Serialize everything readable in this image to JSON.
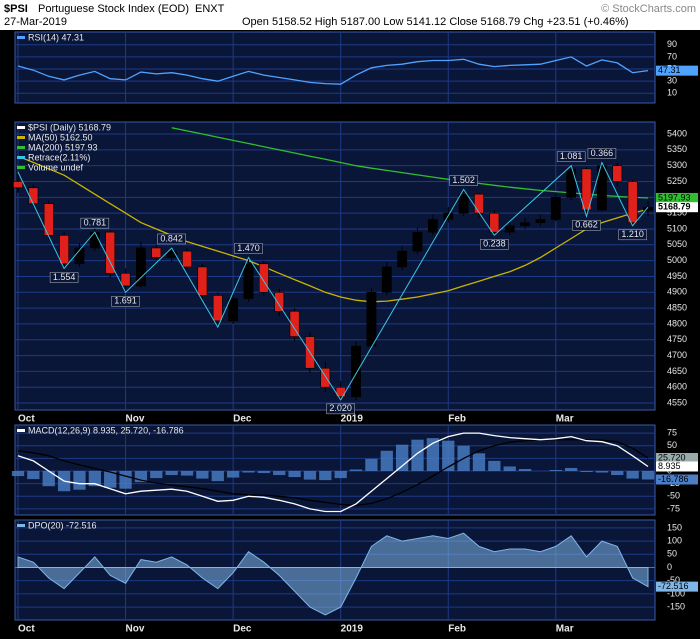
{
  "header": {
    "symbol": "$PSI",
    "name": "Portuguese Stock Index (EOD)",
    "exchange": "ENXT",
    "date": "27-Mar-2019",
    "quote": "Open 5158.52  High 5187.00  Low 5141.12  Close 5168.79  Chg +23.51 (+0.46%)",
    "copyright": "© StockCharts.com"
  },
  "chart_data": [
    {
      "type": "line",
      "legend": [
        {
          "text": "RSI(14) 47.31",
          "color": "#4fa3ff"
        }
      ],
      "ylim": [
        -6,
        111
      ],
      "yticks": [
        10,
        30,
        50,
        70,
        90
      ],
      "grid": true,
      "series": [
        {
          "color": "#4fa3ff",
          "tag": true,
          "values": [
            55,
            48,
            38,
            32,
            40,
            46,
            34,
            32,
            45,
            42,
            44,
            40,
            34,
            30,
            38,
            46,
            40,
            36,
            32,
            28,
            26,
            25,
            40,
            52,
            56,
            58,
            62,
            64,
            64,
            66,
            58,
            54,
            56,
            57,
            58,
            64,
            70,
            55,
            65,
            60,
            44,
            47.31
          ]
        }
      ]
    },
    {
      "type": "candlestick",
      "categories": [
        "Oct",
        null,
        null,
        null,
        null,
        null,
        null,
        "Nov",
        null,
        null,
        null,
        null,
        null,
        null,
        "Dec",
        null,
        null,
        null,
        null,
        null,
        null,
        "2019",
        null,
        null,
        null,
        null,
        null,
        null,
        "Feb",
        null,
        null,
        null,
        null,
        null,
        null,
        "Mar",
        null,
        null,
        null,
        null,
        null,
        null
      ],
      "legend": [
        {
          "text": "$PSI (Daily) 5168.79",
          "color": "#ffffff"
        },
        {
          "text": "MA(50) 5162.50",
          "color": "#c8b400"
        },
        {
          "text": "MA(200) 5197.93",
          "color": "#2fbf2f"
        },
        {
          "text": "Retrace(2.11%)",
          "color": "#39c6e6"
        },
        {
          "text": "Volume undef",
          "color": "#2fbf2f"
        }
      ],
      "up_color": "#000000",
      "down_color": "#e0211b",
      "ylim": [
        4528,
        5438
      ],
      "yticks": [
        4550,
        4600,
        4650,
        4700,
        4750,
        4800,
        4850,
        4900,
        4950,
        5000,
        5050,
        5100,
        5150,
        5200,
        5250,
        5300,
        5350,
        5400
      ],
      "grid": true,
      "open": [
        5250,
        5230,
        5180,
        5080,
        4990,
        5040,
        5090,
        4960,
        4920,
        5040,
        5010,
        5030,
        4980,
        4890,
        4810,
        4880,
        4990,
        4900,
        4840,
        4760,
        4660,
        4600,
        4570,
        4730,
        4900,
        4980,
        5030,
        5090,
        5130,
        5150,
        5210,
        5150,
        5090,
        5110,
        5120,
        5130,
        5200,
        5290,
        5160,
        5300,
        5250,
        5158.52
      ],
      "high": [
        5275,
        5240,
        5190,
        5090,
        5055,
        5105,
        5095,
        4975,
        5060,
        5050,
        5045,
        5040,
        4990,
        4900,
        4895,
        5010,
        5000,
        4910,
        4850,
        4775,
        4680,
        4620,
        4745,
        4915,
        4995,
        5045,
        5105,
        5145,
        5170,
        5225,
        5215,
        5160,
        5125,
        5135,
        5145,
        5215,
        5300,
        5295,
        5315,
        5310,
        5255,
        5187
      ],
      "low": [
        5215,
        5170,
        5065,
        4970,
        4980,
        5030,
        4945,
        4900,
        4915,
        5000,
        4995,
        4970,
        4880,
        4790,
        4800,
        4870,
        4890,
        4825,
        4745,
        4645,
        4585,
        4555,
        4560,
        4720,
        4890,
        4970,
        5020,
        5080,
        5120,
        5140,
        5135,
        5080,
        5080,
        5100,
        5110,
        5125,
        5190,
        5140,
        5155,
        5235,
        5105,
        5141.12
      ],
      "close": [
        5230,
        5180,
        5080,
        4990,
        5040,
        5090,
        4960,
        4920,
        5040,
        5010,
        5030,
        4980,
        4890,
        4810,
        4880,
        4990,
        4900,
        4840,
        4760,
        4660,
        4600,
        4570,
        4730,
        4900,
        4980,
        5030,
        5090,
        5130,
        5150,
        5210,
        5150,
        5090,
        5110,
        5120,
        5130,
        5200,
        5290,
        5160,
        5300,
        5250,
        5120,
        5168.79
      ],
      "series": [
        {
          "color": "#c8b400",
          "values": [
            5330,
            5310,
            5290,
            5270,
            5240,
            5210,
            5180,
            5150,
            5120,
            5100,
            5080,
            5060,
            5045,
            5030,
            5015,
            5000,
            4980,
            4960,
            4940,
            4920,
            4900,
            4885,
            4875,
            4870,
            4872,
            4878,
            4885,
            4895,
            4905,
            4920,
            4935,
            4950,
            4965,
            4985,
            5010,
            5040,
            5070,
            5100,
            5120,
            5135,
            5150,
            5162.5
          ]
        },
        {
          "color": "#2fbf2f",
          "tag": true,
          "values": [
            null,
            null,
            null,
            null,
            null,
            null,
            null,
            null,
            null,
            null,
            5420,
            5410,
            5400,
            5390,
            5380,
            5370,
            5360,
            5350,
            5340,
            5330,
            5320,
            5310,
            5300,
            5292,
            5285,
            5278,
            5271,
            5264,
            5257,
            5250,
            5244,
            5238,
            5232,
            5227,
            5222,
            5218,
            5214,
            5210,
            5206,
            5203,
            5200,
            5197.93
          ]
        }
      ],
      "zigzag": {
        "color": "#39c6e6",
        "x": [
          0,
          3,
          5,
          7,
          10,
          13,
          15,
          21,
          29,
          31,
          36,
          37,
          38,
          40,
          41
        ],
        "values": [
          5280,
          4975,
          5090,
          4900,
          5040,
          4790,
          5010,
          4560,
          5225,
          5080,
          5300,
          5140,
          5310,
          5110,
          5168.79
        ],
        "labels": [
          null,
          "1.554",
          "0.781",
          "1.691",
          "0.842",
          null,
          "1.470",
          "2.020",
          "1.502",
          "0.238",
          "1.081",
          "0.662",
          "0.366",
          "1.210",
          null
        ]
      }
    },
    {
      "type": "line",
      "legend": [
        {
          "text": "MACD(12,26,9) 8.935, 25.720, -16.786",
          "color": "#ffffff"
        }
      ],
      "ylim": [
        -87,
        91
      ],
      "yticks": [
        -75,
        -50,
        -25,
        0,
        25,
        50,
        75
      ],
      "grid": true,
      "series": [
        {
          "type": "bar",
          "color": "#4a7fc8",
          "tag": true,
          "values": [
            -10,
            -16,
            -30,
            -40,
            -37,
            -30,
            -33,
            -35,
            -22,
            -14,
            -8,
            -9,
            -15,
            -20,
            -13,
            -3,
            -4,
            -8,
            -12,
            -17,
            -18,
            -14,
            3,
            24,
            40,
            52,
            62,
            65,
            60,
            50,
            35,
            20,
            9,
            4,
            0,
            2,
            6,
            -2,
            -3,
            -8,
            -15,
            -16.786
          ]
        },
        {
          "color": "#000000",
          "tag": true,
          "values": [
            40,
            36,
            30,
            20,
            12,
            5,
            -2,
            -10,
            -18,
            -24,
            -28,
            -31,
            -35,
            -40,
            -45,
            -47,
            -48,
            -50,
            -53,
            -58,
            -62,
            -66,
            -68,
            -64,
            -55,
            -42,
            -27,
            -10,
            8,
            25,
            40,
            50,
            57,
            60,
            62,
            62,
            62,
            62,
            61,
            58,
            45,
            25.72
          ],
          "value_labels": [
            null,
            null,
            null,
            null,
            null,
            null,
            null,
            null,
            null,
            null,
            null,
            null,
            null,
            null,
            null,
            null,
            null,
            null,
            null,
            null,
            null,
            null,
            null,
            null,
            null,
            null,
            null,
            null,
            null,
            null,
            null,
            null,
            null,
            null,
            null,
            null,
            null,
            null,
            null,
            null,
            null,
            "25.720"
          ]
        },
        {
          "color": "#ffffff",
          "tag": true,
          "values": [
            30,
            20,
            0,
            -20,
            -25,
            -25,
            -35,
            -45,
            -40,
            -38,
            -36,
            -40,
            -50,
            -60,
            -58,
            -50,
            -52,
            -58,
            -65,
            -75,
            -80,
            -80,
            -65,
            -40,
            -15,
            10,
            35,
            55,
            68,
            75,
            75,
            70,
            66,
            64,
            62,
            64,
            68,
            60,
            58,
            50,
            30,
            8.935
          ]
        }
      ]
    },
    {
      "type": "area",
      "categories": [
        "Oct",
        null,
        null,
        null,
        null,
        null,
        null,
        "Nov",
        null,
        null,
        null,
        null,
        null,
        null,
        "Dec",
        null,
        null,
        null,
        null,
        null,
        null,
        "2019",
        null,
        null,
        null,
        null,
        null,
        null,
        "Feb",
        null,
        null,
        null,
        null,
        null,
        null,
        "Mar",
        null,
        null,
        null,
        null,
        null,
        null
      ],
      "legend": [
        {
          "text": "DPO(20) -72.516",
          "color": "#7fb6e8"
        }
      ],
      "ylim": [
        -199,
        180
      ],
      "yticks": [
        -150,
        -100,
        -50,
        0,
        50,
        100,
        150
      ],
      "grid": true,
      "series": [
        {
          "color": "#7fb6e8",
          "tag": true,
          "values": [
            40,
            20,
            -40,
            -80,
            -20,
            40,
            -30,
            -60,
            30,
            20,
            40,
            10,
            -40,
            -80,
            -20,
            60,
            20,
            -30,
            -90,
            -150,
            -180,
            -150,
            -40,
            80,
            120,
            100,
            110,
            120,
            110,
            130,
            80,
            60,
            70,
            70,
            60,
            80,
            120,
            40,
            100,
            80,
            -40,
            -72.516
          ]
        }
      ]
    }
  ]
}
